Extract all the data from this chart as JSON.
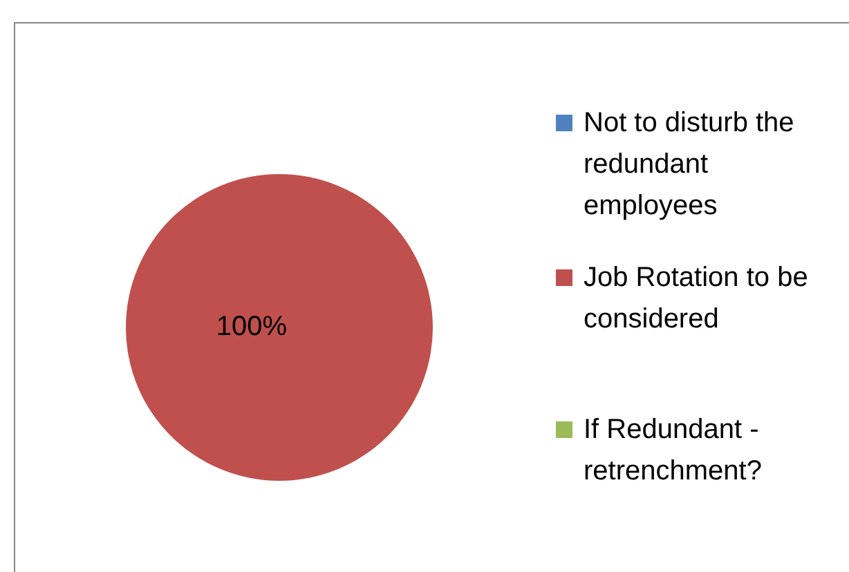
{
  "chart_data": {
    "type": "pie",
    "categories": [
      "Not to disturb the redundant employees",
      "Job Rotation to be considered",
      "If Redundant - retrenchment?"
    ],
    "values": [
      0,
      100,
      0
    ],
    "colors": [
      "#4f81bd",
      "#c0504d",
      "#9bbb59"
    ],
    "value_labels": [
      null,
      "100%",
      null
    ],
    "legend": "right"
  }
}
